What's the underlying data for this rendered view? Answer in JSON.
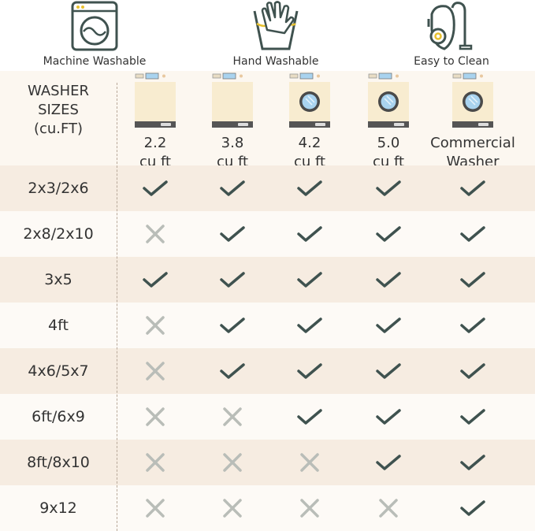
{
  "features": [
    {
      "label": "Machine Washable",
      "icon": "washing-machine-icon"
    },
    {
      "label": "Hand Washable",
      "icon": "hand-wash-icon"
    },
    {
      "label": "Easy to Clean",
      "icon": "vacuum-cleaner-icon"
    }
  ],
  "table": {
    "title_lines": [
      "WASHER",
      "SIZES",
      "(cu.FT)"
    ],
    "columns": [
      {
        "line1": "2.2",
        "line2": "cu ft",
        "type": "top-load"
      },
      {
        "line1": "3.8",
        "line2": "cu ft",
        "type": "top-load"
      },
      {
        "line1": "4.2",
        "line2": "cu ft",
        "type": "front-load"
      },
      {
        "line1": "5.0",
        "line2": "cu ft",
        "type": "front-load"
      },
      {
        "line1": "Commercial",
        "line2": "Washer",
        "type": "front-load"
      }
    ],
    "rows": [
      {
        "size": "2x3/2x6",
        "fits": [
          true,
          true,
          true,
          true,
          true
        ]
      },
      {
        "size": "2x8/2x10",
        "fits": [
          false,
          true,
          true,
          true,
          true
        ]
      },
      {
        "size": "3x5",
        "fits": [
          true,
          true,
          true,
          true,
          true
        ]
      },
      {
        "size": "4ft",
        "fits": [
          false,
          true,
          true,
          true,
          true
        ]
      },
      {
        "size": "4x6/5x7",
        "fits": [
          false,
          true,
          true,
          true,
          true
        ]
      },
      {
        "size": "6ft/6x9",
        "fits": [
          false,
          false,
          true,
          true,
          true
        ]
      },
      {
        "size": "8ft/8x10",
        "fits": [
          false,
          false,
          false,
          true,
          true
        ]
      },
      {
        "size": "9x12",
        "fits": [
          false,
          false,
          false,
          false,
          true
        ]
      }
    ]
  },
  "colors": {
    "check": "#3f524f",
    "cross": "#b9bdb8",
    "row_dark": "#f6ece1",
    "row_light": "#fdfaf6",
    "accent": "#e8c12e",
    "washer_body": "#f8ecd0"
  }
}
